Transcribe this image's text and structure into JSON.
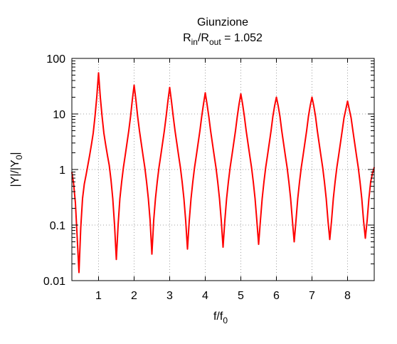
{
  "chart_data": {
    "type": "line",
    "title": "Giunzione",
    "subtitle": {
      "base1": "R",
      "sub1": "in",
      "mid": "/R",
      "sub2": "out",
      "tail": " = 1.052"
    },
    "xlabel": {
      "base": "f/f",
      "sub": "0"
    },
    "ylabel": {
      "base": "|Y|/|Y",
      "sub": "0",
      "tail": "|"
    },
    "xlim": [
      0.25,
      8.75
    ],
    "ylim": [
      0.01,
      100
    ],
    "yscale": "log",
    "grid": true,
    "x_ticks": [
      1,
      2,
      3,
      4,
      5,
      6,
      7,
      8
    ],
    "x_tick_labels": [
      "1",
      "2",
      "3",
      "4",
      "5",
      "6",
      "7",
      "8"
    ],
    "y_ticks": [
      0.01,
      0.1,
      1,
      10,
      100
    ],
    "y_tick_labels": [
      "0.01",
      "0.1",
      "1",
      "10",
      "100"
    ],
    "series": [
      {
        "color": "#ff0000",
        "x": [
          0.25,
          0.3,
          0.35,
          0.4,
          0.45,
          0.5,
          0.55,
          0.6,
          0.65,
          0.7,
          0.75,
          0.8,
          0.85,
          0.9,
          0.95,
          1.0,
          1.05,
          1.1,
          1.15,
          1.2,
          1.25,
          1.3,
          1.35,
          1.4,
          1.45,
          1.5,
          1.55,
          1.6,
          1.65,
          1.7,
          1.75,
          1.8,
          1.85,
          1.9,
          1.95,
          2.0,
          2.05,
          2.1,
          2.15,
          2.2,
          2.25,
          2.3,
          2.35,
          2.4,
          2.45,
          2.5,
          2.55,
          2.6,
          2.65,
          2.7,
          2.75,
          2.8,
          2.85,
          2.9,
          2.95,
          3.0,
          3.05,
          3.1,
          3.15,
          3.2,
          3.25,
          3.3,
          3.35,
          3.4,
          3.45,
          3.5,
          3.55,
          3.6,
          3.65,
          3.7,
          3.75,
          3.8,
          3.85,
          3.9,
          3.95,
          4.0,
          4.05,
          4.1,
          4.15,
          4.2,
          4.25,
          4.3,
          4.35,
          4.4,
          4.45,
          4.5,
          4.55,
          4.6,
          4.65,
          4.7,
          4.75,
          4.8,
          4.85,
          4.9,
          4.95,
          5.0,
          5.05,
          5.1,
          5.15,
          5.2,
          5.25,
          5.3,
          5.35,
          5.4,
          5.45,
          5.5,
          5.55,
          5.6,
          5.65,
          5.7,
          5.75,
          5.8,
          5.85,
          5.9,
          5.95,
          6.0,
          6.05,
          6.1,
          6.15,
          6.2,
          6.25,
          6.3,
          6.35,
          6.4,
          6.45,
          6.5,
          6.55,
          6.6,
          6.65,
          6.7,
          6.75,
          6.8,
          6.85,
          6.9,
          6.95,
          7.0,
          7.05,
          7.1,
          7.15,
          7.2,
          7.25,
          7.3,
          7.35,
          7.4,
          7.45,
          7.5,
          7.55,
          7.6,
          7.65,
          7.7,
          7.75,
          7.8,
          7.85,
          7.9,
          7.95,
          8.0,
          8.05,
          8.1,
          8.15,
          8.2,
          8.25,
          8.3,
          8.35,
          8.4,
          8.45,
          8.5,
          8.55,
          8.6,
          8.65,
          8.7,
          8.75
        ],
        "y": [
          0.9,
          0.55,
          0.25,
          0.06,
          0.014,
          0.09,
          0.3,
          0.55,
          0.8,
          1.2,
          1.8,
          2.8,
          4.5,
          9.0,
          20,
          55,
          20,
          9.0,
          4.5,
          2.8,
          1.8,
          1.2,
          0.65,
          0.3,
          0.1,
          0.024,
          0.1,
          0.3,
          0.6,
          1.1,
          1.8,
          3.0,
          5.0,
          9.0,
          18,
          33,
          18,
          9.0,
          5.0,
          3.0,
          1.8,
          1.1,
          0.6,
          0.3,
          0.12,
          0.03,
          0.12,
          0.3,
          0.6,
          1.1,
          1.8,
          3.0,
          5.0,
          9.0,
          17,
          30,
          17,
          9.0,
          5.0,
          3.0,
          1.8,
          1.1,
          0.6,
          0.3,
          0.12,
          0.037,
          0.12,
          0.3,
          0.6,
          1.1,
          1.8,
          3.0,
          5.0,
          9.0,
          15,
          24,
          15,
          9.0,
          5.0,
          3.0,
          1.8,
          1.1,
          0.6,
          0.3,
          0.12,
          0.04,
          0.12,
          0.3,
          0.6,
          1.1,
          1.8,
          3.0,
          5.0,
          9.0,
          15,
          23,
          15,
          9.0,
          5.0,
          3.0,
          1.8,
          1.1,
          0.6,
          0.3,
          0.12,
          0.045,
          0.12,
          0.3,
          0.6,
          1.1,
          1.8,
          3.0,
          5.0,
          9.0,
          14,
          20,
          14,
          9.0,
          5.0,
          3.0,
          1.8,
          1.1,
          0.6,
          0.3,
          0.12,
          0.05,
          0.12,
          0.3,
          0.6,
          1.1,
          1.8,
          3.0,
          5.0,
          9.0,
          14,
          20,
          14,
          9.0,
          5.0,
          3.0,
          1.8,
          1.1,
          0.6,
          0.3,
          0.12,
          0.055,
          0.12,
          0.3,
          0.6,
          1.1,
          1.8,
          3.0,
          5.0,
          8.5,
          12,
          17,
          12,
          8.5,
          5.0,
          3.0,
          1.8,
          1.1,
          0.6,
          0.3,
          0.12,
          0.058,
          0.12,
          0.3,
          0.6,
          0.85,
          1.1
        ]
      }
    ]
  }
}
